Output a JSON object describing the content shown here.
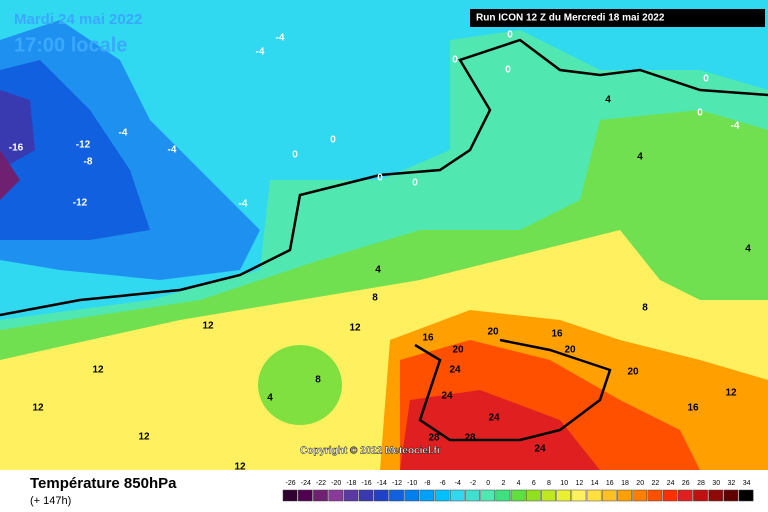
{
  "header": {
    "date": "Mardi 24 mai 2022",
    "time": "17:00 locale",
    "run": "Run ICON 12 Z du Mercredi 18 mai 2022"
  },
  "copyright": "Copyright © 2022 Meteociel.fr",
  "footer": {
    "title": "Température 850hPa",
    "lead": "(+ 147h)"
  },
  "isotherm_labels": [
    -12,
    -8,
    -16,
    -12,
    -4,
    -4,
    -4,
    -4,
    -4,
    0,
    0,
    0,
    0,
    0,
    0,
    0,
    4,
    8,
    12,
    12,
    12,
    12,
    12,
    12,
    16,
    20,
    20,
    24,
    24,
    24,
    28,
    28,
    24,
    20,
    16,
    8,
    4,
    4,
    4,
    4,
    8,
    12,
    0,
    -4,
    0,
    16,
    20
  ],
  "scale": {
    "values": [
      -26,
      -24,
      -22,
      -20,
      -18,
      -16,
      -14,
      -12,
      -10,
      -8,
      -6,
      -4,
      -2,
      0,
      2,
      4,
      6,
      8,
      10,
      12,
      14,
      16,
      18,
      20,
      22,
      24,
      26,
      28,
      30,
      32,
      34
    ],
    "colors": [
      "#300030",
      "#500050",
      "#702070",
      "#8a3a9a",
      "#5a3aa0",
      "#3a3ab0",
      "#2040c8",
      "#1060e0",
      "#0080f0",
      "#00a0f8",
      "#00c0ff",
      "#30d8f0",
      "#40e0d0",
      "#50e8b0",
      "#40e080",
      "#60e040",
      "#90e020",
      "#c0e820",
      "#e8f030",
      "#fff060",
      "#ffe040",
      "#ffc020",
      "#ffa000",
      "#ff8000",
      "#ff5000",
      "#ff3000",
      "#e02020",
      "#c01010",
      "#900808",
      "#600000",
      "#000000"
    ]
  }
}
